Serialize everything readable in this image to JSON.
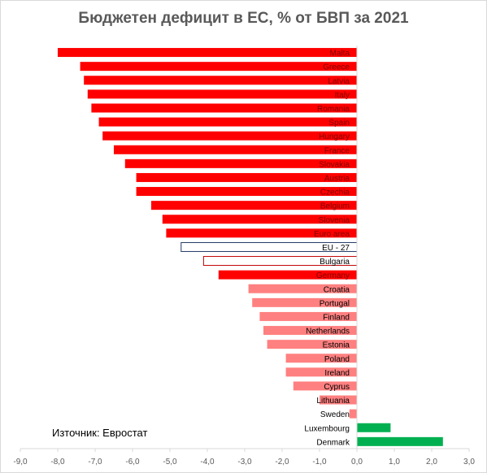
{
  "title": "Бюджетен дефицит в ЕС, % от БВП за 2021",
  "source": "Източник: Евростат",
  "chart_data": {
    "type": "bar",
    "orientation": "horizontal",
    "title": "Бюджетен дефицит в ЕС, % от БВП за 2021",
    "xlim": [
      -9.0,
      3.0
    ],
    "x_ticks": [
      "-9,0",
      "-8,0",
      "-7,0",
      "-6,0",
      "-5,0",
      "-4,0",
      "-3,0",
      "-2,0",
      "-1,0",
      "0,0",
      "1,0",
      "2,0",
      "3,0"
    ],
    "grid": false,
    "legend": "none",
    "colors": {
      "high_deficit": "#ff0000",
      "low_deficit": "#ff8080",
      "surplus": "#00b050",
      "eu27_outline": "#1f3864",
      "bulgaria_outline": "#c00000"
    },
    "categories": [
      "Malta",
      "Greece",
      "Latvia",
      "Italy",
      "Romania",
      "Spain",
      "Hungary",
      "France",
      "Slovakia",
      "Austria",
      "Czechia",
      "Belgium",
      "Slovenia",
      "Euro area",
      "EU - 27",
      "Bulgaria",
      "Germany",
      "Croatia",
      "Portugal",
      "Finland",
      "Netherlands",
      "Estonia",
      "Poland",
      "Ireland",
      "Cyprus",
      "Lithuania",
      "Sweden",
      "Luxembourg",
      "Denmark"
    ],
    "values": [
      -8.0,
      -7.4,
      -7.3,
      -7.2,
      -7.1,
      -6.9,
      -6.8,
      -6.5,
      -6.2,
      -5.9,
      -5.9,
      -5.5,
      -5.2,
      -5.1,
      -4.7,
      -4.1,
      -3.7,
      -2.9,
      -2.8,
      -2.6,
      -2.5,
      -2.4,
      -1.9,
      -1.9,
      -1.7,
      -1.0,
      -0.2,
      0.9,
      2.3
    ],
    "bar_style": [
      "high_deficit",
      "high_deficit",
      "high_deficit",
      "high_deficit",
      "high_deficit",
      "high_deficit",
      "high_deficit",
      "high_deficit",
      "high_deficit",
      "high_deficit",
      "high_deficit",
      "high_deficit",
      "high_deficit",
      "high_deficit",
      "eu27_outline",
      "bulgaria_outline",
      "high_deficit",
      "low_deficit",
      "low_deficit",
      "low_deficit",
      "low_deficit",
      "low_deficit",
      "low_deficit",
      "low_deficit",
      "low_deficit",
      "low_deficit",
      "low_deficit",
      "surplus",
      "surplus"
    ]
  }
}
